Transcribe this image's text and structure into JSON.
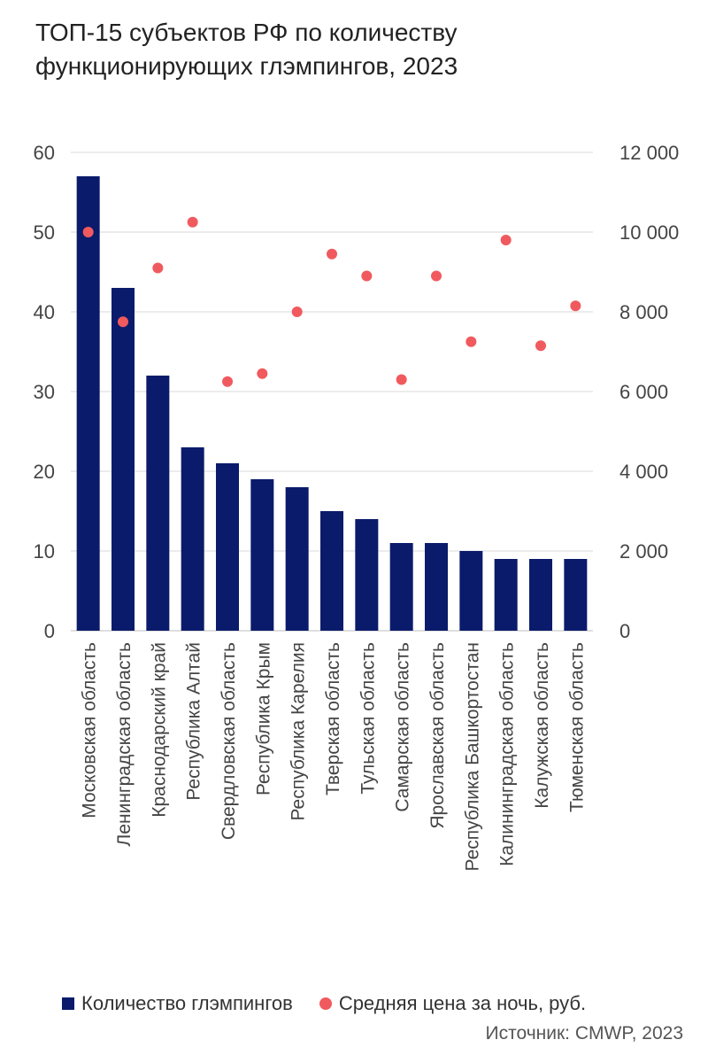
{
  "title": "ТОП-15 субъектов РФ по количеству\nфункционирующих глэмпингов, 2023",
  "source": "Источник: CMWP, 2023",
  "colors": {
    "bar": "#0b1b6b",
    "dot": "#f05a5e",
    "grid": "#d9d9d9",
    "text": "#444444"
  },
  "legend": {
    "bar_label": "Количество глэмпингов",
    "dot_label": "Средняя цена за ночь, руб."
  },
  "chart_data": {
    "type": "bar",
    "categories": [
      "Московская область",
      "Ленинградская область",
      "Краснодарский край",
      "Республика Алтай",
      "Свердловская область",
      "Республика Крым",
      "Республика Карелия",
      "Тверская область",
      "Тульская область",
      "Самарская область",
      "Ярославская область",
      "Республика Башкортостан",
      "Калининградская область",
      "Калужская область",
      "Тюменская область"
    ],
    "series": [
      {
        "name": "Количество глэмпингов",
        "type": "bar",
        "axis": "left",
        "values": [
          57,
          43,
          32,
          23,
          21,
          19,
          18,
          15,
          14,
          11,
          11,
          10,
          9,
          9,
          9
        ]
      },
      {
        "name": "Средняя цена за ночь, руб.",
        "type": "scatter",
        "axis": "right",
        "values": [
          10000,
          7750,
          9100,
          10250,
          6250,
          6450,
          8000,
          9450,
          8900,
          6300,
          8900,
          7250,
          9800,
          7150,
          8150
        ]
      }
    ],
    "ylim_left": [
      0,
      60
    ],
    "yticks_left": [
      "0",
      "10",
      "20",
      "30",
      "40",
      "50",
      "60"
    ],
    "ylim_right": [
      0,
      12000
    ],
    "yticks_right": [
      "0",
      "2 000",
      "4 000",
      "6 000",
      "8 000",
      "10 000",
      "12 000"
    ],
    "grid": true,
    "legend_position": "bottom"
  }
}
